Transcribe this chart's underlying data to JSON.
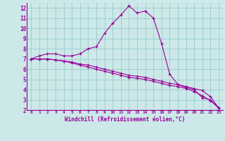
{
  "xlabel": "Windchill (Refroidissement éolien,°C)",
  "x_values": [
    0,
    1,
    2,
    3,
    4,
    5,
    6,
    7,
    8,
    9,
    10,
    11,
    12,
    13,
    14,
    15,
    16,
    17,
    18,
    19,
    20,
    21,
    22,
    23
  ],
  "line1": [
    7.0,
    7.3,
    7.5,
    7.5,
    7.3,
    7.3,
    7.5,
    8.0,
    8.2,
    9.5,
    10.5,
    11.3,
    12.2,
    11.5,
    11.7,
    11.0,
    8.5,
    5.5,
    4.5,
    4.2,
    4.0,
    3.2,
    3.0,
    2.2
  ],
  "line2": [
    7.0,
    7.0,
    7.0,
    6.9,
    6.8,
    6.7,
    6.5,
    6.4,
    6.2,
    6.0,
    5.8,
    5.6,
    5.4,
    5.3,
    5.2,
    5.0,
    4.8,
    4.6,
    4.5,
    4.3,
    4.1,
    3.9,
    3.3,
    2.2
  ],
  "line3": [
    7.0,
    7.0,
    7.0,
    6.9,
    6.8,
    6.6,
    6.4,
    6.2,
    6.0,
    5.8,
    5.6,
    5.4,
    5.2,
    5.1,
    5.0,
    4.8,
    4.6,
    4.4,
    4.3,
    4.1,
    3.8,
    3.4,
    2.9,
    2.2
  ],
  "line_color": "#990099",
  "bg_color": "#cce8e8",
  "grid_color": "#99cccc",
  "ylim": [
    2,
    12.5
  ],
  "xlim": [
    -0.5,
    23.5
  ],
  "yticks": [
    2,
    3,
    4,
    5,
    6,
    7,
    8,
    9,
    10,
    11,
    12
  ],
  "xticks": [
    0,
    1,
    2,
    3,
    4,
    5,
    6,
    7,
    8,
    9,
    10,
    11,
    12,
    13,
    14,
    15,
    16,
    17,
    18,
    19,
    20,
    21,
    22,
    23
  ]
}
